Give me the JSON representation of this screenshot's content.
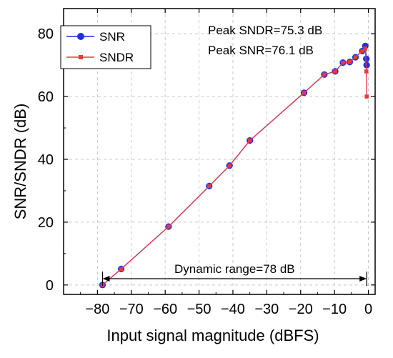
{
  "colors": {
    "snr": "#1f2ee6",
    "sndr": "#e8393c",
    "arrow": "#000000",
    "axis": "#000000",
    "grid": "#c8c8c8"
  },
  "chart_data": {
    "type": "line",
    "xlabel": "Input signal magnitude (dBFS)",
    "ylabel": "SNR/SNDR (dB)",
    "xlim": [
      -90,
      2
    ],
    "ylim": [
      -3,
      88
    ],
    "xticks": [
      -80,
      -70,
      -60,
      -50,
      -40,
      -30,
      -20,
      -10,
      0
    ],
    "yticks": [
      0,
      20,
      40,
      60,
      80
    ],
    "grid": true,
    "legend_position": "top-left",
    "series": [
      {
        "name": "SNR",
        "marker": "circle",
        "x": [
          -78.5,
          -73,
          -59,
          -47,
          -41,
          -35,
          -19,
          -13,
          -9.8,
          -7.5,
          -5.5,
          -3.8,
          -1.8,
          -0.9,
          -0.6,
          -0.5
        ],
        "y": [
          0,
          5.1,
          18.6,
          31.5,
          38,
          46,
          61.2,
          67,
          68,
          70.8,
          71,
          72.5,
          74.5,
          76.1,
          72,
          70
        ]
      },
      {
        "name": "SNDR",
        "marker": "square",
        "x": [
          -78.5,
          -73,
          -59,
          -47,
          -41,
          -35,
          -19,
          -13,
          -9.8,
          -7.5,
          -5.5,
          -3.8,
          -1.8,
          -0.9,
          -0.6,
          -0.5
        ],
        "y": [
          0,
          5.1,
          18.6,
          31.5,
          38,
          46,
          61.2,
          67,
          68,
          70.8,
          71,
          72.5,
          74.5,
          75.3,
          68,
          60
        ]
      }
    ],
    "annotations": {
      "peak_sndr": "Peak SNDR=75.3 dB",
      "peak_snr": "Peak SNR=76.1 dB",
      "dynamic_range": "Dynamic range=78 dB",
      "dynamic_range_x": [
        -78.5,
        -0.5
      ],
      "dynamic_range_y": 2
    }
  }
}
